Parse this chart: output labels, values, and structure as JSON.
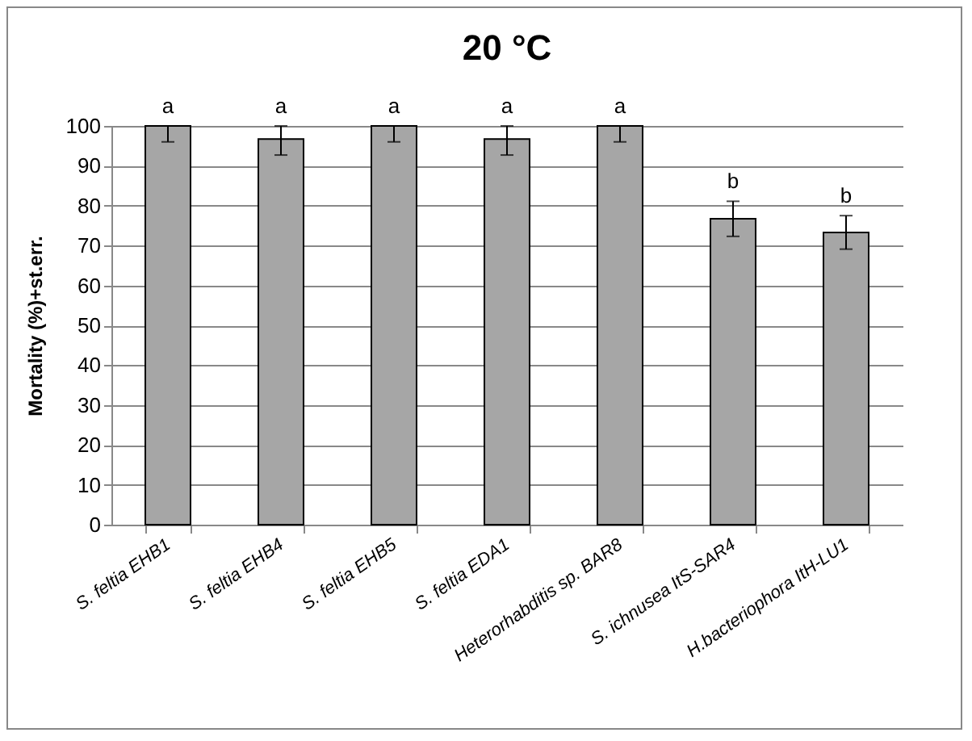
{
  "chart_data": {
    "type": "bar",
    "title": "20 °C",
    "ylabel": "Mortality (%)+st.err.",
    "categories": [
      "S. feltia EHB1",
      "S. feltia EHB4",
      "S. feltia EHB5",
      "S. feltia EDA1",
      "Heterorhabditis sp. BAR8",
      "S. ichnusea ItS-SAR4",
      "H.bacteriophora ItH-LU1"
    ],
    "values": [
      100,
      96.7,
      100,
      96.7,
      100,
      76.7,
      73.3
    ],
    "errors": [
      [
        96,
        100
      ],
      [
        92.7,
        100
      ],
      [
        96,
        100
      ],
      [
        92.7,
        100
      ],
      [
        96,
        100
      ],
      [
        72.3,
        81.1
      ],
      [
        69.1,
        77.5
      ]
    ],
    "color": "#a6a6a6",
    "ylim": [
      0,
      100
    ],
    "yticks": [
      0,
      10,
      20,
      30,
      40,
      50,
      60,
      70,
      80,
      90,
      100
    ],
    "grid": "y",
    "annotations": [
      {
        "text": "a",
        "x": "S. feltia EHB1",
        "y": 100
      },
      {
        "text": "a",
        "x": "S. feltia EHB4",
        "y": 100
      },
      {
        "text": "a",
        "x": "S. feltia EHB5",
        "y": 100
      },
      {
        "text": "a",
        "x": "S. feltia EDA1",
        "y": 100
      },
      {
        "text": "a",
        "x": "Heterorhabditis sp. BAR8",
        "y": 100
      },
      {
        "text": "b",
        "x": "S. ichnusea ItS-SAR4",
        "y": 81.1
      },
      {
        "text": "b",
        "x": "H.bacteriophora ItH-LU1",
        "y": 77.5
      }
    ]
  }
}
